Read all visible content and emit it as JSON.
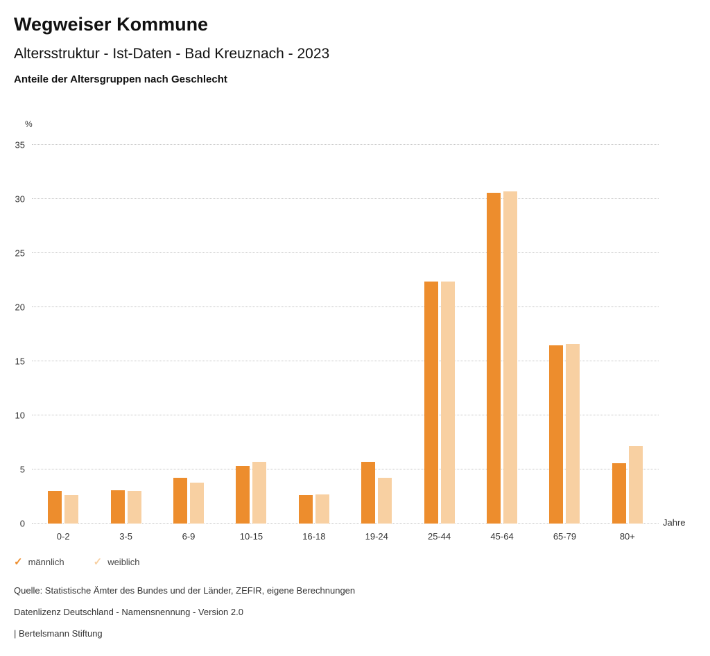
{
  "header": {
    "title": "Wegweiser Kommune",
    "subtitle": "Altersstruktur - Ist-Daten - Bad Kreuznach - 2023",
    "subsubtitle": "Anteile der Altersgruppen nach Geschlecht"
  },
  "chart_data": {
    "type": "bar",
    "title": "Anteile der Altersgruppen nach Geschlecht",
    "categories": [
      "0-2",
      "3-5",
      "6-9",
      "10-15",
      "16-18",
      "19-24",
      "25-44",
      "45-64",
      "65-79",
      "80+"
    ],
    "series": [
      {
        "name": "männlich",
        "color": "#ED8D2D",
        "values": [
          3.0,
          3.1,
          4.2,
          5.3,
          2.6,
          5.7,
          22.4,
          30.6,
          16.5,
          5.6
        ]
      },
      {
        "name": "weiblich",
        "color": "#F8D0A2",
        "values": [
          2.6,
          3.0,
          3.8,
          5.7,
          2.7,
          4.2,
          22.4,
          30.7,
          16.6,
          7.2
        ]
      }
    ],
    "xlabel": "Jahre",
    "ylabel": "%",
    "ylim": [
      0,
      35
    ],
    "yticks": [
      0,
      5,
      10,
      15,
      20,
      25,
      30,
      35
    ],
    "grid": true,
    "legend_position": "bottom"
  },
  "footer": {
    "source": "Quelle: Statistische Ämter des Bundes und der Länder, ZEFIR, eigene Berechnungen",
    "license": "Datenlizenz Deutschland - Namensnennung - Version 2.0",
    "attribution": "| Bertelsmann Stiftung"
  }
}
